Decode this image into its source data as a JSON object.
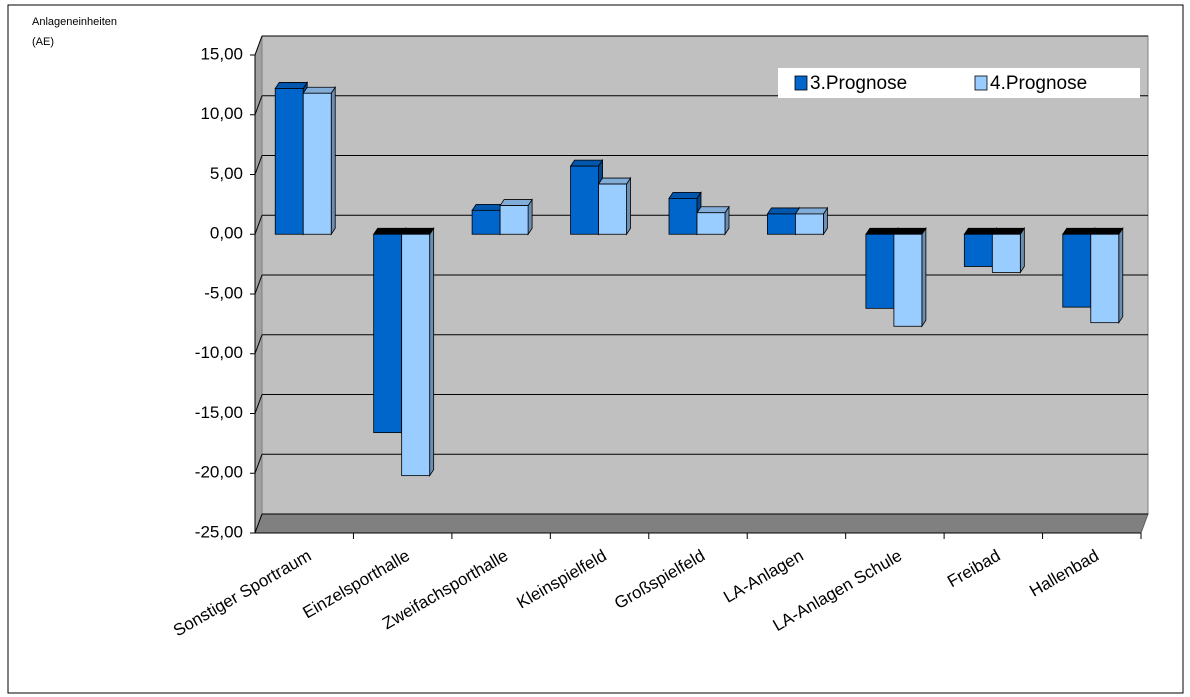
{
  "chart_data": {
    "type": "bar3d",
    "y_label": [
      "Anlageneinheiten",
      "(AE)"
    ],
    "categories": [
      "Sonstiger Sportraum",
      "Einzelsporthalle",
      "Zweifachsporthalle",
      "Kleinspielfeld",
      "Großspielfeld",
      "LA-Anlagen",
      "LA-Anlagen Schule",
      "Freibad",
      "Hallenbad"
    ],
    "series": [
      {
        "name": "3.Prognose",
        "color": "#0066cc",
        "values": [
          12.2,
          -16.6,
          2.0,
          5.7,
          3.0,
          1.7,
          -6.2,
          -2.7,
          -6.1
        ]
      },
      {
        "name": "4.Prognose",
        "color": "#99ccff",
        "values": [
          11.8,
          -20.2,
          2.4,
          4.2,
          1.8,
          1.7,
          -7.7,
          -3.2,
          -7.4
        ]
      }
    ],
    "ylim": [
      -25,
      15
    ],
    "yticks": [
      {
        "value": -25,
        "label": "-25,00"
      },
      {
        "value": -20,
        "label": "-20,00"
      },
      {
        "value": -15,
        "label": "-15,00"
      },
      {
        "value": -10,
        "label": "-10,00"
      },
      {
        "value": -5,
        "label": "-5,00"
      },
      {
        "value": 0,
        "label": "0,00"
      },
      {
        "value": 5,
        "label": "5,00"
      },
      {
        "value": 10,
        "label": "10,00"
      },
      {
        "value": 15,
        "label": "15,00"
      }
    ],
    "grid": true,
    "legend": "top-right"
  }
}
